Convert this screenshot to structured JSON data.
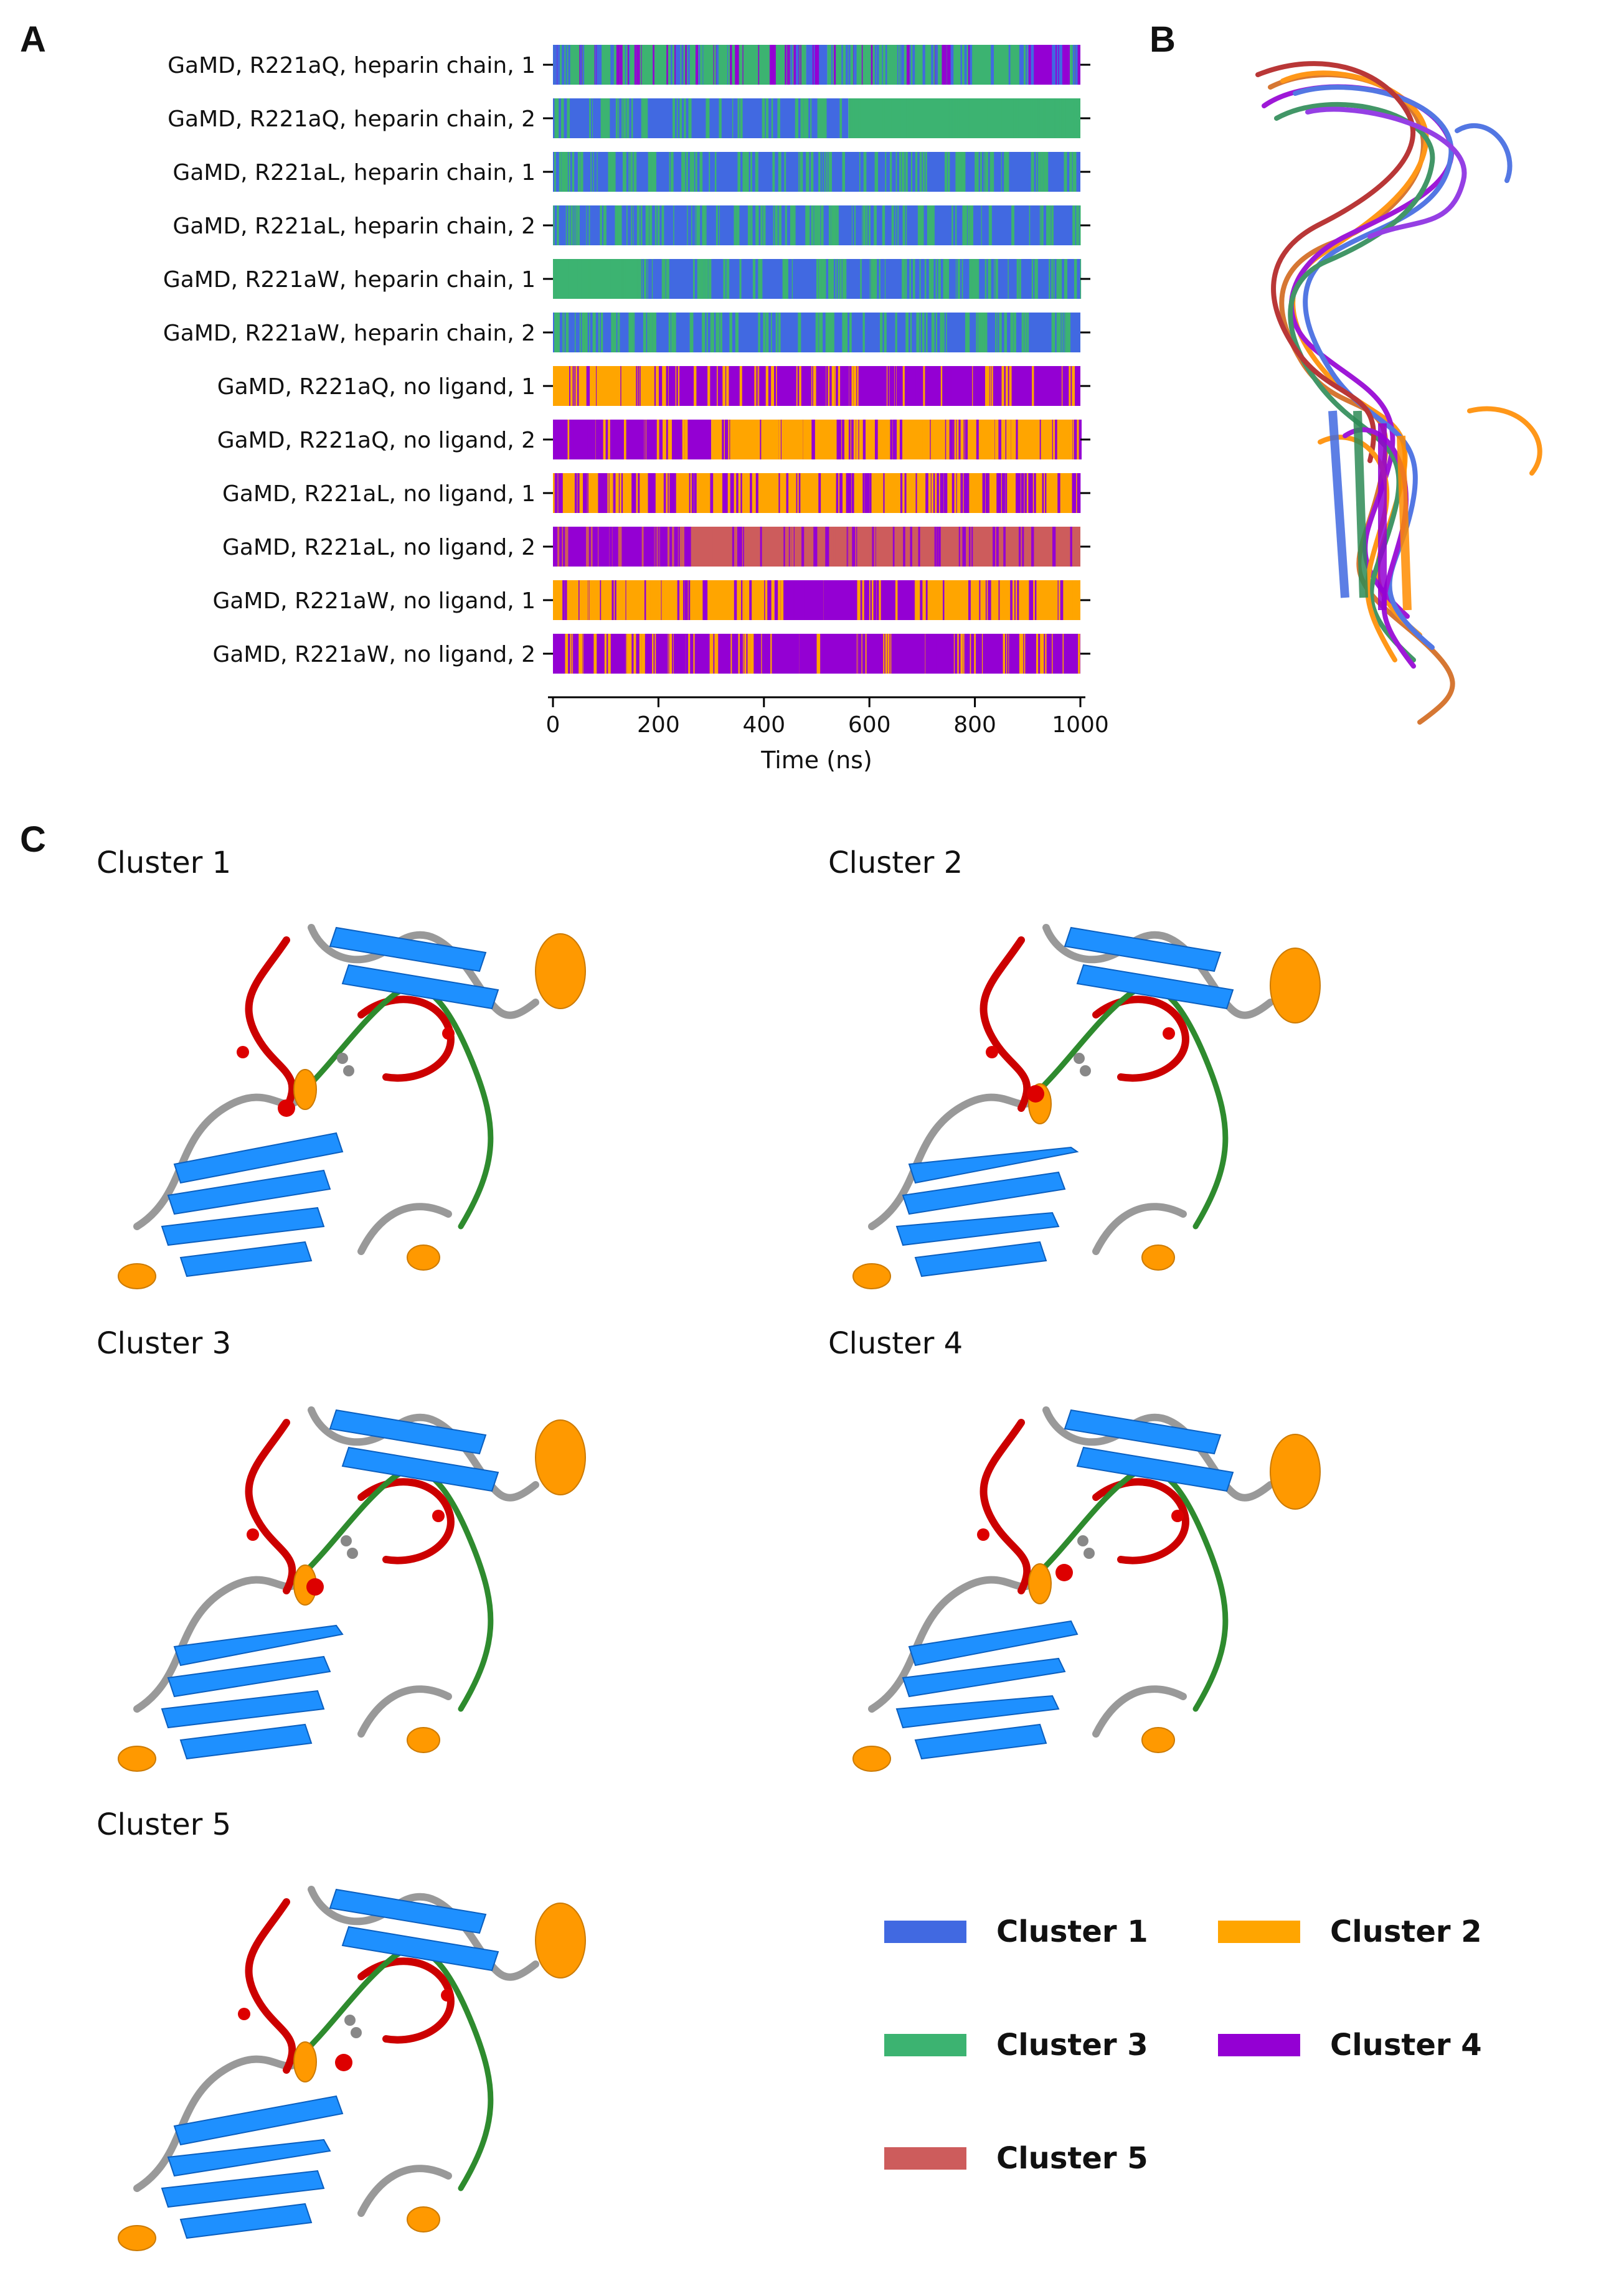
{
  "panels": {
    "a": "A",
    "b": "B",
    "c": "C"
  },
  "colors": {
    "cluster1": "#4169e1",
    "cluster2": "#ffa500",
    "cluster3": "#3cb371",
    "cluster4": "#9400d3",
    "cluster5": "#cd5c5c"
  },
  "chart_data": {
    "type": "heatmap",
    "xlabel": "Time (ns)",
    "xlim": [
      0,
      1000
    ],
    "xticks": [
      0,
      200,
      400,
      600,
      800,
      1000
    ],
    "rows": [
      {
        "label": "GaMD, R221aQ, heparin chain, 1",
        "dominant": 3,
        "segments": [
          [
            0,
            480,
            3
          ],
          [
            480,
            520,
            1
          ],
          [
            520,
            900,
            3
          ],
          [
            900,
            980,
            4
          ],
          [
            980,
            1000,
            3
          ]
        ],
        "noise": [
          1,
          4
        ]
      },
      {
        "label": "GaMD, R221aQ, heparin chain, 2",
        "dominant": 1,
        "segments": [
          [
            0,
            480,
            1
          ],
          [
            480,
            560,
            1
          ],
          [
            560,
            1000,
            3
          ]
        ],
        "noise": [
          3
        ]
      },
      {
        "label": "GaMD, R221aL, heparin chain, 1",
        "dominant": 1,
        "segments": [
          [
            0,
            1000,
            1
          ]
        ],
        "noise": [
          3
        ]
      },
      {
        "label": "GaMD, R221aL, heparin chain, 2",
        "dominant": 1,
        "segments": [
          [
            0,
            1000,
            1
          ]
        ],
        "noise": [
          3
        ]
      },
      {
        "label": "GaMD, R221aW, heparin chain, 1",
        "dominant": 1,
        "segments": [
          [
            0,
            160,
            3
          ],
          [
            160,
            1000,
            1
          ]
        ],
        "noise": [
          3
        ]
      },
      {
        "label": "GaMD, R221aW, heparin chain, 2",
        "dominant": 1,
        "segments": [
          [
            0,
            1000,
            1
          ]
        ],
        "noise": [
          3
        ]
      },
      {
        "label": "GaMD, R221aQ, no ligand, 1",
        "dominant": 4,
        "segments": [
          [
            0,
            220,
            2
          ],
          [
            220,
            1000,
            4
          ]
        ],
        "noise": [
          2,
          4
        ]
      },
      {
        "label": "GaMD, R221aQ, no ligand, 2",
        "dominant": 2,
        "segments": [
          [
            0,
            300,
            4
          ],
          [
            300,
            1000,
            2
          ]
        ],
        "noise": [
          2,
          4
        ]
      },
      {
        "label": "GaMD, R221aL, no ligand, 1",
        "dominant": 2,
        "segments": [
          [
            0,
            1000,
            2
          ]
        ],
        "noise": [
          4
        ]
      },
      {
        "label": "GaMD, R221aL, no ligand, 2",
        "dominant": 5,
        "segments": [
          [
            0,
            260,
            4
          ],
          [
            260,
            1000,
            5
          ]
        ],
        "noise": [
          4,
          5
        ]
      },
      {
        "label": "GaMD, R221aW, no ligand, 1",
        "dominant": 2,
        "segments": [
          [
            0,
            420,
            2
          ],
          [
            420,
            680,
            4
          ],
          [
            680,
            1000,
            2
          ]
        ],
        "noise": [
          2,
          4
        ]
      },
      {
        "label": "GaMD, R221aW, no ligand, 2",
        "dominant": 4,
        "segments": [
          [
            0,
            160,
            4
          ],
          [
            160,
            1000,
            4
          ]
        ],
        "noise": [
          2,
          4
        ]
      }
    ]
  },
  "clusters": [
    {
      "title": "Cluster 1"
    },
    {
      "title": "Cluster 2"
    },
    {
      "title": "Cluster 3"
    },
    {
      "title": "Cluster 4"
    },
    {
      "title": "Cluster 5"
    }
  ],
  "legend": [
    {
      "label": "Cluster 1",
      "color": "#4169e1"
    },
    {
      "label": "Cluster 2",
      "color": "#ffa500"
    },
    {
      "label": "Cluster 3",
      "color": "#3cb371"
    },
    {
      "label": "Cluster 4",
      "color": "#9400d3"
    },
    {
      "label": "Cluster 5",
      "color": "#cd5c5c"
    }
  ]
}
